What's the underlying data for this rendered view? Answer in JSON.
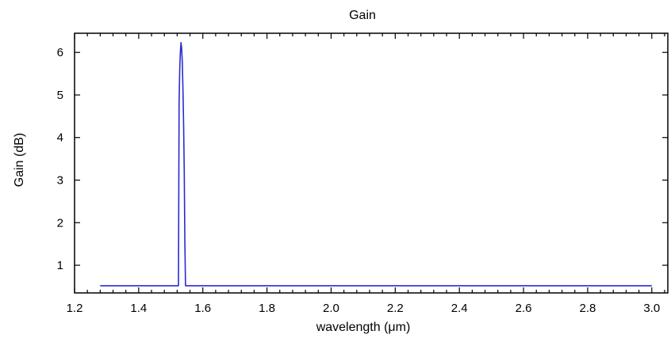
{
  "chart_data": {
    "type": "line",
    "title": "Gain",
    "xlabel": "wavelength (μm)",
    "ylabel": "Gain (dB)",
    "xlim": [
      1.2,
      3.05
    ],
    "ylim": [
      0.35,
      6.45
    ],
    "x_ticks": [
      1.2,
      1.4,
      1.6,
      1.8,
      2.0,
      2.2,
      2.4,
      2.6,
      2.8,
      3.0
    ],
    "x_tick_labels": [
      "1.2",
      "1.4",
      "1.6",
      "1.8",
      "2.0",
      "2.2",
      "2.4",
      "2.6",
      "2.8",
      "3.0"
    ],
    "y_ticks": [
      1,
      2,
      3,
      4,
      5,
      6
    ],
    "y_tick_labels": [
      "1",
      "2",
      "3",
      "4",
      "5",
      "6"
    ],
    "grid": false,
    "legend": false,
    "line_color": "#2b2bd0",
    "series": [
      {
        "x": [
          1.28,
          1.524,
          1.526,
          1.528,
          1.53,
          1.532,
          1.534,
          1.536,
          1.538,
          1.54,
          1.542,
          1.544,
          1.546,
          1.548,
          3.0
        ],
        "y": [
          0.52,
          0.52,
          4.8,
          5.6,
          6.0,
          6.23,
          6.1,
          5.75,
          5.1,
          4.3,
          3.2,
          1.5,
          0.52,
          0.52,
          0.52
        ]
      }
    ]
  }
}
